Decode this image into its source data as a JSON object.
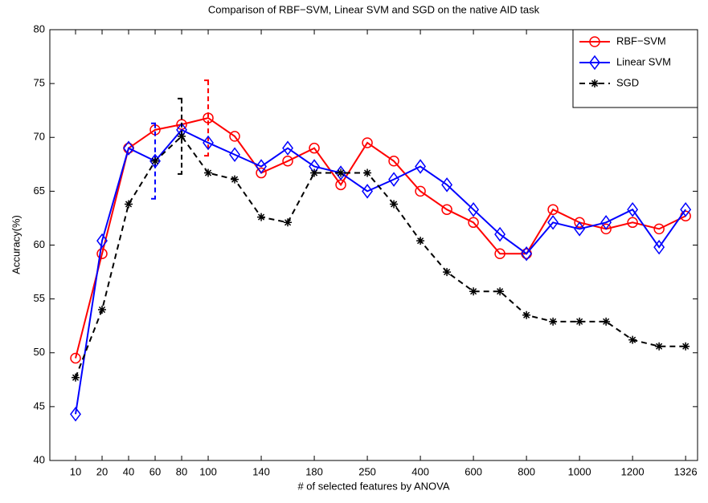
{
  "chart_data": {
    "type": "line",
    "title": "Comparison of RBF−SVM, Linear SVM and SGD on the native AID task",
    "xlabel": "# of selected features by ANOVA",
    "ylabel": "Accuracy(%)",
    "categories": [
      "10",
      "20",
      "40",
      "60",
      "80",
      "100",
      null,
      "140",
      null,
      "180",
      null,
      "250",
      null,
      "400",
      null,
      "600",
      null,
      "800",
      null,
      "1000",
      null,
      "1200",
      null,
      "1326"
    ],
    "ylim": [
      40,
      80
    ],
    "yticks": [
      40,
      45,
      50,
      55,
      60,
      65,
      70,
      75,
      80
    ],
    "grid": false,
    "legend": "upper right",
    "series": [
      {
        "name": "RBF−SVM",
        "color": "#ff0000",
        "marker": "circle",
        "linestyle": "solid",
        "values": [
          49.5,
          59.2,
          69.0,
          70.7,
          71.2,
          71.8,
          70.1,
          66.7,
          67.8,
          69.0,
          65.6,
          69.5,
          67.8,
          65.0,
          63.3,
          62.1,
          59.2,
          59.2,
          63.3,
          62.1,
          61.5,
          62.1,
          61.5,
          62.7
        ],
        "errors": [
          null,
          null,
          null,
          null,
          null,
          3.5,
          null,
          null,
          null,
          null,
          null,
          null,
          null,
          null,
          null,
          null,
          null,
          null,
          null,
          null,
          null,
          null,
          null,
          null
        ]
      },
      {
        "name": "Linear SVM",
        "color": "#0000ff",
        "marker": "diamond",
        "linestyle": "solid",
        "values": [
          44.3,
          60.4,
          69.0,
          67.8,
          70.7,
          69.5,
          68.4,
          67.3,
          69.0,
          67.3,
          66.7,
          65.0,
          66.1,
          67.3,
          65.6,
          63.3,
          61.0,
          59.2,
          62.1,
          61.5,
          62.1,
          63.3,
          59.8,
          63.3
        ],
        "errors": [
          null,
          null,
          null,
          3.5,
          null,
          null,
          null,
          null,
          null,
          null,
          null,
          null,
          null,
          null,
          null,
          null,
          null,
          null,
          null,
          null,
          null,
          null,
          null,
          null
        ]
      },
      {
        "name": "SGD",
        "color": "#000000",
        "marker": "asterisk",
        "linestyle": "dashed",
        "values": [
          47.7,
          54.0,
          63.8,
          67.8,
          70.1,
          66.7,
          66.1,
          62.6,
          62.1,
          66.7,
          66.7,
          66.7,
          63.8,
          60.4,
          57.5,
          55.7,
          55.7,
          53.5,
          52.9,
          52.9,
          52.9,
          51.2,
          50.6,
          50.6
        ],
        "errors": [
          null,
          null,
          null,
          null,
          3.5,
          null,
          null,
          null,
          null,
          null,
          null,
          null,
          null,
          null,
          null,
          null,
          null,
          null,
          null,
          null,
          null,
          null,
          null,
          null
        ]
      }
    ]
  }
}
